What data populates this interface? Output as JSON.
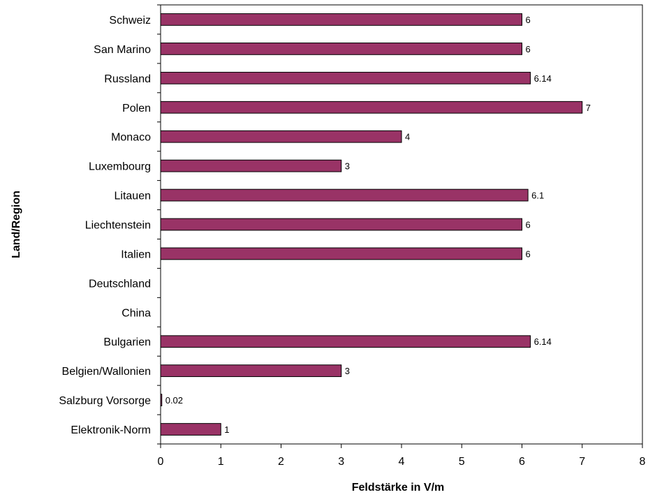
{
  "chart_data": {
    "type": "bar",
    "orientation": "horizontal",
    "title": "",
    "xlabel": "Feldstärke in V/m",
    "ylabel": "Land/Region",
    "xlim": [
      0,
      8
    ],
    "x_ticks": [
      "0",
      "1",
      "2",
      "3",
      "4",
      "5",
      "6",
      "7",
      "8"
    ],
    "grid": false,
    "legend": "none",
    "bar_color": "#993366",
    "categories": [
      "Schweiz",
      "San Marino",
      "Russland",
      "Polen",
      "Monaco",
      "Luxembourg",
      "Litauen",
      "Liechtenstein",
      "Italien",
      "Deutschland",
      "China",
      "Bulgarien",
      "Belgien/Wallonien",
      "Salzburg Vorsorge",
      "Elektronik-Norm"
    ],
    "values": [
      6,
      6,
      6.14,
      7,
      4,
      3,
      6.1,
      6,
      6,
      null,
      null,
      6.14,
      3,
      0.02,
      1
    ],
    "data_labels": [
      "6",
      "6",
      "6.14",
      "7",
      "4",
      "3",
      "6.1",
      "6",
      "6",
      "",
      "",
      "6.14",
      "3",
      "0.02",
      "1"
    ]
  }
}
